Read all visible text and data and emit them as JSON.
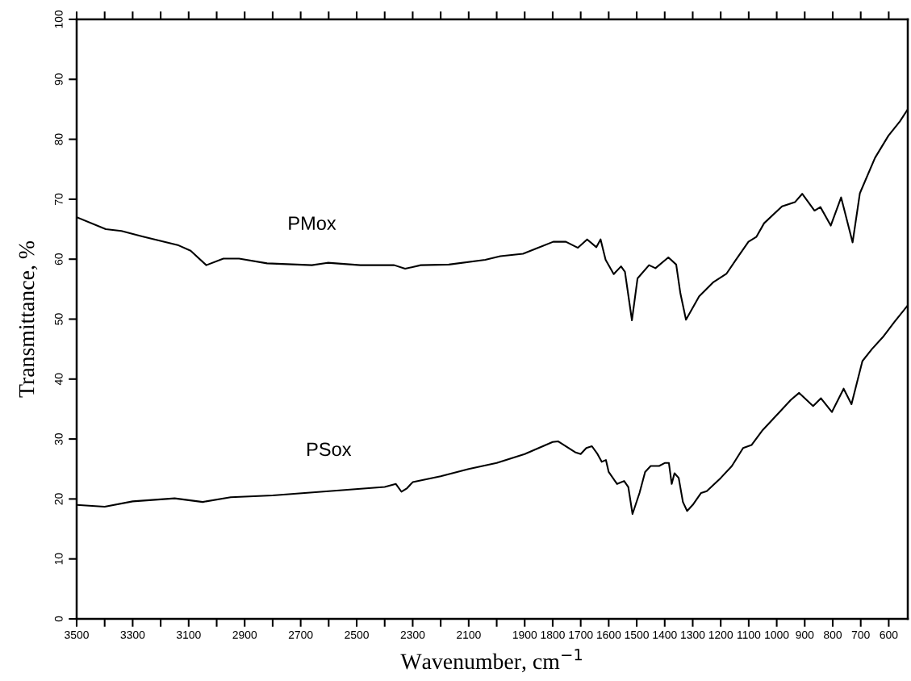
{
  "chart_data": {
    "type": "line",
    "xlabel": "Wavenumber, cm$^{−1}$",
    "ylabel": "Transmittance, %",
    "xlim": [
      3500,
      532
    ],
    "ylim": [
      0,
      100
    ],
    "xticks": [
      3500,
      {
        "value": 3400,
        "label": null
      },
      3300,
      {
        "value": 3200,
        "label": null
      },
      3100,
      {
        "value": 3000,
        "label": null
      },
      2900,
      {
        "value": 2800,
        "label": null
      },
      2700,
      {
        "value": 2600,
        "label": null
      },
      2500,
      {
        "value": 2400,
        "label": null
      },
      2300,
      {
        "value": 2200,
        "label": null
      },
      2100,
      {
        "value": 2000,
        "label": null
      },
      1900,
      1800,
      1700,
      1600,
      1500,
      1400,
      1300,
      1200,
      1100,
      1000,
      900,
      800,
      700,
      600
    ],
    "yticks": [
      0,
      10,
      20,
      30,
      40,
      50,
      60,
      70,
      80,
      90,
      100
    ],
    "grid": false,
    "legend": false,
    "series": [
      {
        "name": "PMox",
        "color": "#000000",
        "x": [
          3500,
          3396,
          3340,
          3266,
          3136,
          3093,
          3037,
          2976,
          2920,
          2820,
          2660,
          2604,
          2487,
          2366,
          2327,
          2271,
          2171,
          2041,
          1987,
          1906,
          1857,
          1798,
          1753,
          1710,
          1677,
          1644,
          1629,
          1611,
          1582,
          1556,
          1542,
          1517,
          1497,
          1456,
          1433,
          1387,
          1359,
          1344,
          1324,
          1277,
          1228,
          1179,
          1147,
          1101,
          1073,
          1045,
          981,
          935,
          909,
          865,
          844,
          807,
          770,
          729,
          703,
          649,
          601,
          560,
          532
        ],
        "values": [
          67.0,
          65.0,
          64.7,
          63.8,
          62.3,
          61.4,
          59.0,
          60.1,
          60.1,
          59.3,
          59.0,
          59.4,
          59.0,
          59.0,
          58.4,
          59.0,
          59.1,
          59.9,
          60.5,
          60.9,
          61.8,
          62.9,
          62.9,
          61.9,
          63.3,
          62.0,
          63.3,
          59.9,
          57.5,
          58.8,
          57.9,
          49.8,
          56.8,
          59.0,
          58.5,
          60.3,
          59.1,
          54.3,
          49.9,
          53.8,
          56.1,
          57.6,
          59.8,
          62.9,
          63.7,
          66.0,
          68.8,
          69.5,
          70.9,
          68.1,
          68.7,
          65.6,
          70.3,
          62.8,
          71.0,
          76.9,
          80.6,
          83.0,
          85.0
        ]
      },
      {
        "name": "PSox",
        "color": "#000000",
        "x": [
          3500,
          3400,
          3300,
          3150,
          3050,
          2950,
          2800,
          2600,
          2400,
          2360,
          2340,
          2320,
          2300,
          2200,
          2100,
          2000,
          1900,
          1800,
          1780,
          1720,
          1700,
          1680,
          1660,
          1640,
          1625,
          1610,
          1600,
          1570,
          1545,
          1530,
          1515,
          1490,
          1470,
          1450,
          1420,
          1400,
          1385,
          1375,
          1365,
          1350,
          1335,
          1320,
          1300,
          1270,
          1250,
          1200,
          1160,
          1120,
          1090,
          1050,
          984,
          950,
          920,
          870,
          842,
          803,
          761,
          733,
          694,
          660,
          621,
          580,
          532
        ],
        "values": [
          19.0,
          18.7,
          19.6,
          20.1,
          19.5,
          20.3,
          20.6,
          21.3,
          22.0,
          22.5,
          21.2,
          21.8,
          22.8,
          23.8,
          25.0,
          26.0,
          27.5,
          29.5,
          29.6,
          27.8,
          27.5,
          28.5,
          28.8,
          27.5,
          26.2,
          26.5,
          24.5,
          22.5,
          23.0,
          22.0,
          17.5,
          21.0,
          24.5,
          25.5,
          25.5,
          26.0,
          26.0,
          22.5,
          24.3,
          23.5,
          19.5,
          18.0,
          19.0,
          21.0,
          21.3,
          23.5,
          25.5,
          28.5,
          29.0,
          31.5,
          34.8,
          36.5,
          37.7,
          35.5,
          36.8,
          34.5,
          38.4,
          35.8,
          43.0,
          45.0,
          47.0,
          49.5,
          52.3
        ]
      }
    ]
  }
}
